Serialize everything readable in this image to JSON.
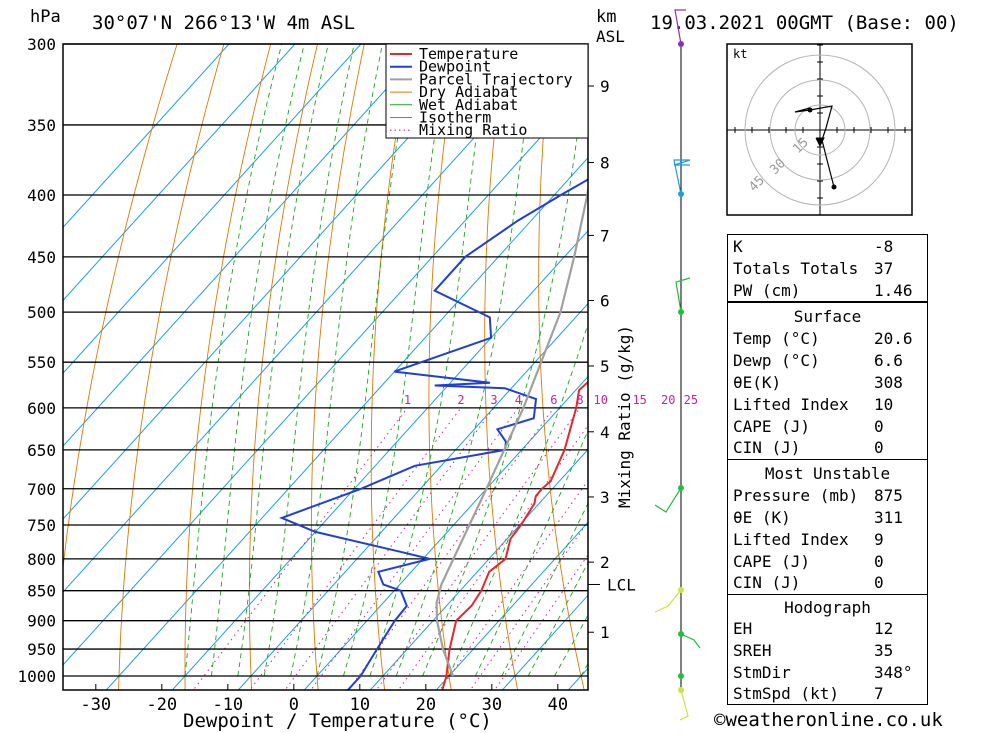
{
  "header": {
    "pressure_unit": "hPa",
    "location": "30°07'N  266°13'W  4m  ASL",
    "height_unit": "km",
    "height_unit_sub": "ASL",
    "datetime": "19.03.2021  00GMT  (Base: 00)"
  },
  "colors": {
    "temperature": "#e8262c",
    "dewpoint": "#1f3fd6",
    "parcel": "#a0a0a0",
    "dry_adiabat": "#e07800",
    "wet_adiabat": "#1aa81a",
    "isotherm": "#1a9ee8",
    "mixing_ratio": "#d0209a"
  },
  "chart_data": {
    "type": "line",
    "title": "30°07'N  266°13'W  4m  ASL",
    "xlabel": "Dewpoint / Temperature (°C)",
    "ylabel": "hPa",
    "y_scale": "log",
    "xlim": [
      -40,
      40
    ],
    "ylim": [
      1050,
      300
    ],
    "x_ticks": [
      -30,
      -20,
      -10,
      0,
      10,
      20,
      30,
      40
    ],
    "y_ticks": [
      300,
      350,
      400,
      450,
      500,
      550,
      600,
      650,
      700,
      750,
      800,
      850,
      900,
      950,
      1000
    ],
    "km_ticks": [
      {
        "label": "1",
        "p": 920
      },
      {
        "label": "2",
        "p": 805
      },
      {
        "label": "3",
        "p": 711
      },
      {
        "label": "4",
        "p": 628
      },
      {
        "label": "5",
        "p": 554
      },
      {
        "label": "6",
        "p": 489
      },
      {
        "label": "7",
        "p": 432
      },
      {
        "label": "8",
        "p": 376
      },
      {
        "label": "9",
        "p": 325
      }
    ],
    "lcl": {
      "label": "LCL",
      "p": 840
    },
    "mixing_ratio_axis_label": "Mixing Ratio (g/kg)",
    "mixing_ratio_lines": [
      "1",
      "2",
      "3",
      "4",
      "6",
      "8",
      "10",
      "15",
      "20",
      "25"
    ],
    "legend": [
      "Temperature",
      "Dewpoint",
      "Parcel Trajectory",
      "Dry Adiabat",
      "Wet Adiabat",
      "Isotherm",
      "Mixing Ratio"
    ],
    "legend_position": "top-right",
    "series": [
      {
        "name": "Temperature",
        "points": [
          [
            1050,
            22
          ],
          [
            1000,
            19.6
          ],
          [
            950,
            16.4
          ],
          [
            900,
            13.5
          ],
          [
            875,
            13.8
          ],
          [
            850,
            13.2
          ],
          [
            820,
            11.8
          ],
          [
            800,
            12.5
          ],
          [
            770,
            10.5
          ],
          [
            750,
            10.2
          ],
          [
            720,
            9.3
          ],
          [
            710,
            8.5
          ],
          [
            700,
            8.4
          ],
          [
            690,
            8.7
          ],
          [
            650,
            6.5
          ],
          [
            600,
            2.5
          ],
          [
            580,
            0.5
          ],
          [
            570,
            0.8
          ],
          [
            550,
            -0.5
          ],
          [
            500,
            -5.2
          ],
          [
            480,
            -5.5
          ],
          [
            450,
            -8.8
          ],
          [
            400,
            -16.5
          ],
          [
            350,
            -25
          ],
          [
            335,
            -27.5
          ],
          [
            300,
            -35
          ]
        ]
      },
      {
        "name": "Dewpoint",
        "points": [
          [
            1050,
            6.6
          ],
          [
            1000,
            6.6
          ],
          [
            950,
            5.4
          ],
          [
            900,
            4.2
          ],
          [
            875,
            4.0
          ],
          [
            850,
            1.0
          ],
          [
            840,
            -2.5
          ],
          [
            820,
            -5.0
          ],
          [
            800,
            1.0
          ],
          [
            790,
            -4
          ],
          [
            760,
            -20
          ],
          [
            740,
            -27
          ],
          [
            700,
            -19
          ],
          [
            670,
            -14
          ],
          [
            650,
            -2.5
          ],
          [
            640,
            -3.5
          ],
          [
            625,
            -6.5
          ],
          [
            612,
            -2.5
          ],
          [
            590,
            -4.8
          ],
          [
            578,
            -11
          ],
          [
            575,
            -22
          ],
          [
            572,
            -14
          ],
          [
            560,
            -30
          ],
          [
            525,
            -20
          ],
          [
            505,
            -23
          ],
          [
            480,
            -35
          ],
          [
            450,
            -35
          ],
          [
            420,
            -32
          ],
          [
            400,
            -29
          ],
          [
            350,
            -20
          ],
          [
            340,
            -22
          ],
          [
            300,
            -23
          ]
        ]
      },
      {
        "name": "Parcel Trajectory",
        "points": [
          [
            1000,
            20.6
          ],
          [
            950,
            15.4
          ],
          [
            900,
            10.6
          ],
          [
            870,
            8.1
          ],
          [
            840,
            6.3
          ],
          [
            800,
            4.6
          ],
          [
            700,
            0
          ],
          [
            600,
            -5.5
          ],
          [
            500,
            -13
          ],
          [
            450,
            -18.5
          ],
          [
            400,
            -25
          ],
          [
            350,
            -33
          ],
          [
            300,
            -42
          ]
        ]
      }
    ]
  },
  "hodograph": {
    "unit": "kt",
    "ring_labels": [
      "15",
      "30",
      "45"
    ]
  },
  "stats": {
    "index": [
      {
        "label": "K",
        "value": "-8"
      },
      {
        "label": "Totals Totals",
        "value": "37"
      },
      {
        "label": "PW (cm)",
        "value": "1.46"
      }
    ],
    "surface": {
      "title": "Surface",
      "rows": [
        {
          "label": "Temp (°C)",
          "value": "20.6"
        },
        {
          "label": "Dewp (°C)",
          "value": "6.6"
        },
        {
          "label": "θE(K)",
          "value": "308"
        },
        {
          "label": "Lifted Index",
          "value": "10"
        },
        {
          "label": "CAPE (J)",
          "value": "0"
        },
        {
          "label": "CIN (J)",
          "value": "0"
        }
      ]
    },
    "most_unstable": {
      "title": "Most Unstable",
      "rows": [
        {
          "label": "Pressure (mb)",
          "value": "875"
        },
        {
          "label": "θE (K)",
          "value": "311"
        },
        {
          "label": "Lifted Index",
          "value": "9"
        },
        {
          "label": "CAPE (J)",
          "value": "0"
        },
        {
          "label": "CIN (J)",
          "value": "0"
        }
      ]
    },
    "hodograph": {
      "title": "Hodograph",
      "rows": [
        {
          "label": "EH",
          "value": "12"
        },
        {
          "label": "SREH",
          "value": "35"
        },
        {
          "label": "StmDir",
          "value": "348°"
        },
        {
          "label": "StmSpd (kt)",
          "value": "7"
        }
      ]
    }
  },
  "footer": {
    "credit": "©weatheronline.co.uk"
  }
}
